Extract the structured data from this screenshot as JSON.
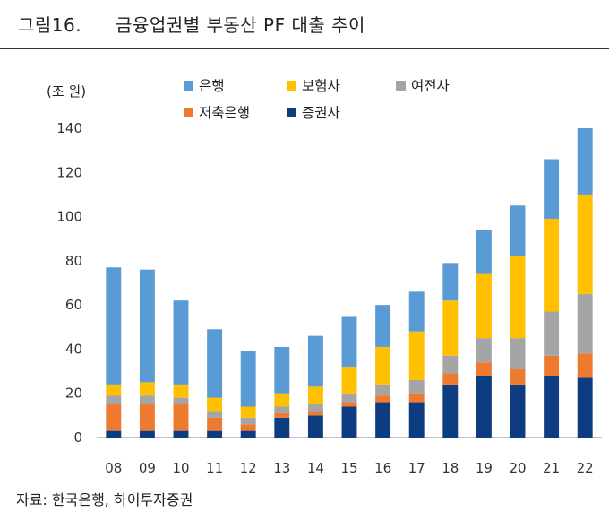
{
  "header": {
    "figure_number": "그림16.",
    "title": "금융업권별 부동산 PF 대출 추이"
  },
  "source": "자료: 한국은행, 하이투자증권",
  "chart_data": {
    "type": "bar",
    "stacked": true,
    "unit_label": "(조 원)",
    "categories": [
      "08",
      "09",
      "10",
      "11",
      "12",
      "13",
      "14",
      "15",
      "16",
      "17",
      "18",
      "19",
      "20",
      "21",
      "22"
    ],
    "ylim": [
      0,
      140
    ],
    "yticks": [
      0,
      20,
      40,
      60,
      80,
      100,
      120,
      140
    ],
    "legend_position": "top",
    "series": [
      {
        "name": "증권사",
        "color": "#0d3d80",
        "values": [
          3,
          3,
          3,
          3,
          3,
          9,
          10,
          14,
          16,
          16,
          24,
          28,
          24,
          28,
          27
        ]
      },
      {
        "name": "저축은행",
        "color": "#ee7a30",
        "values": [
          12,
          12,
          12,
          6,
          3,
          2,
          2,
          2,
          3,
          4,
          5,
          6,
          7,
          9,
          11
        ]
      },
      {
        "name": "여전사",
        "color": "#a5a5a5",
        "values": [
          4,
          4,
          3,
          3,
          3,
          3,
          3,
          4,
          5,
          6,
          8,
          11,
          14,
          20,
          27
        ]
      },
      {
        "name": "보험사",
        "color": "#ffc000",
        "values": [
          5,
          6,
          6,
          6,
          5,
          6,
          8,
          12,
          17,
          22,
          25,
          29,
          37,
          42,
          45
        ]
      },
      {
        "name": "은행",
        "color": "#5b9bd5",
        "values": [
          53,
          51,
          38,
          31,
          25,
          21,
          23,
          23,
          19,
          18,
          17,
          20,
          23,
          27,
          30
        ]
      }
    ]
  }
}
